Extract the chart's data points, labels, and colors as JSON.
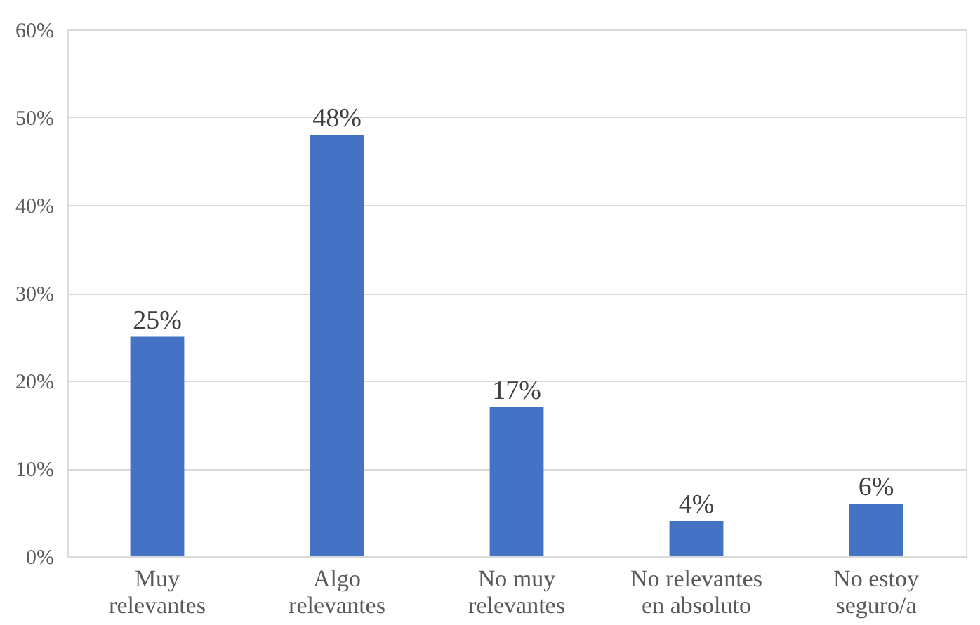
{
  "chart_data": {
    "type": "bar",
    "categories": [
      "Muy relevantes",
      "Algo relevantes",
      "No muy relevantes",
      "No relevantes en absoluto",
      "No estoy seguro/a"
    ],
    "values": [
      25,
      48,
      17,
      4,
      6
    ],
    "value_labels": [
      "25%",
      "48%",
      "17%",
      "4%",
      "6%"
    ],
    "color": "#4472c4",
    "ylim": [
      0,
      60
    ],
    "yticks": [
      {
        "value": 0,
        "label": "0%"
      },
      {
        "value": 10,
        "label": "10%"
      },
      {
        "value": 20,
        "label": "20%"
      },
      {
        "value": 30,
        "label": "30%"
      },
      {
        "value": 40,
        "label": "40%"
      },
      {
        "value": 50,
        "label": "50%"
      },
      {
        "value": 60,
        "label": "60%"
      }
    ],
    "grid": "y"
  }
}
